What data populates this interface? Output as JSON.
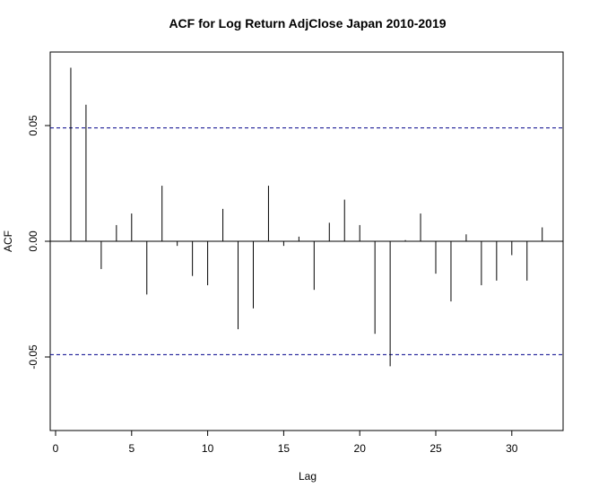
{
  "chart_data": {
    "type": "bar",
    "subtype": "acf-stem",
    "title": "ACF for Log Return AdjClose Japan 2010-2019",
    "xlabel": "Lag",
    "ylabel": "ACF",
    "xlim": [
      0,
      33
    ],
    "ylim": [
      -0.082,
      0.082
    ],
    "xticks": [
      "0",
      "5",
      "10",
      "15",
      "20",
      "25",
      "30"
    ],
    "yticks": [
      "-0.05",
      "0.00",
      "0.05"
    ],
    "confidence_bound": 0.049,
    "confidence_color": "#00008b",
    "zero_line": true,
    "grid": false,
    "x": [
      1,
      2,
      3,
      4,
      5,
      6,
      7,
      8,
      9,
      10,
      11,
      12,
      13,
      14,
      15,
      16,
      17,
      18,
      19,
      20,
      21,
      22,
      23,
      24,
      25,
      26,
      27,
      28,
      29,
      30,
      31,
      32
    ],
    "values": [
      0.075,
      0.059,
      -0.012,
      0.007,
      0.012,
      -0.023,
      0.024,
      -0.002,
      -0.015,
      -0.019,
      0.014,
      -0.038,
      -0.029,
      0.024,
      -0.002,
      0.002,
      -0.021,
      0.008,
      0.018,
      0.007,
      -0.04,
      -0.054,
      0.0005,
      0.012,
      -0.014,
      -0.026,
      0.003,
      -0.019,
      -0.017,
      -0.006,
      -0.017,
      0.006
    ]
  }
}
